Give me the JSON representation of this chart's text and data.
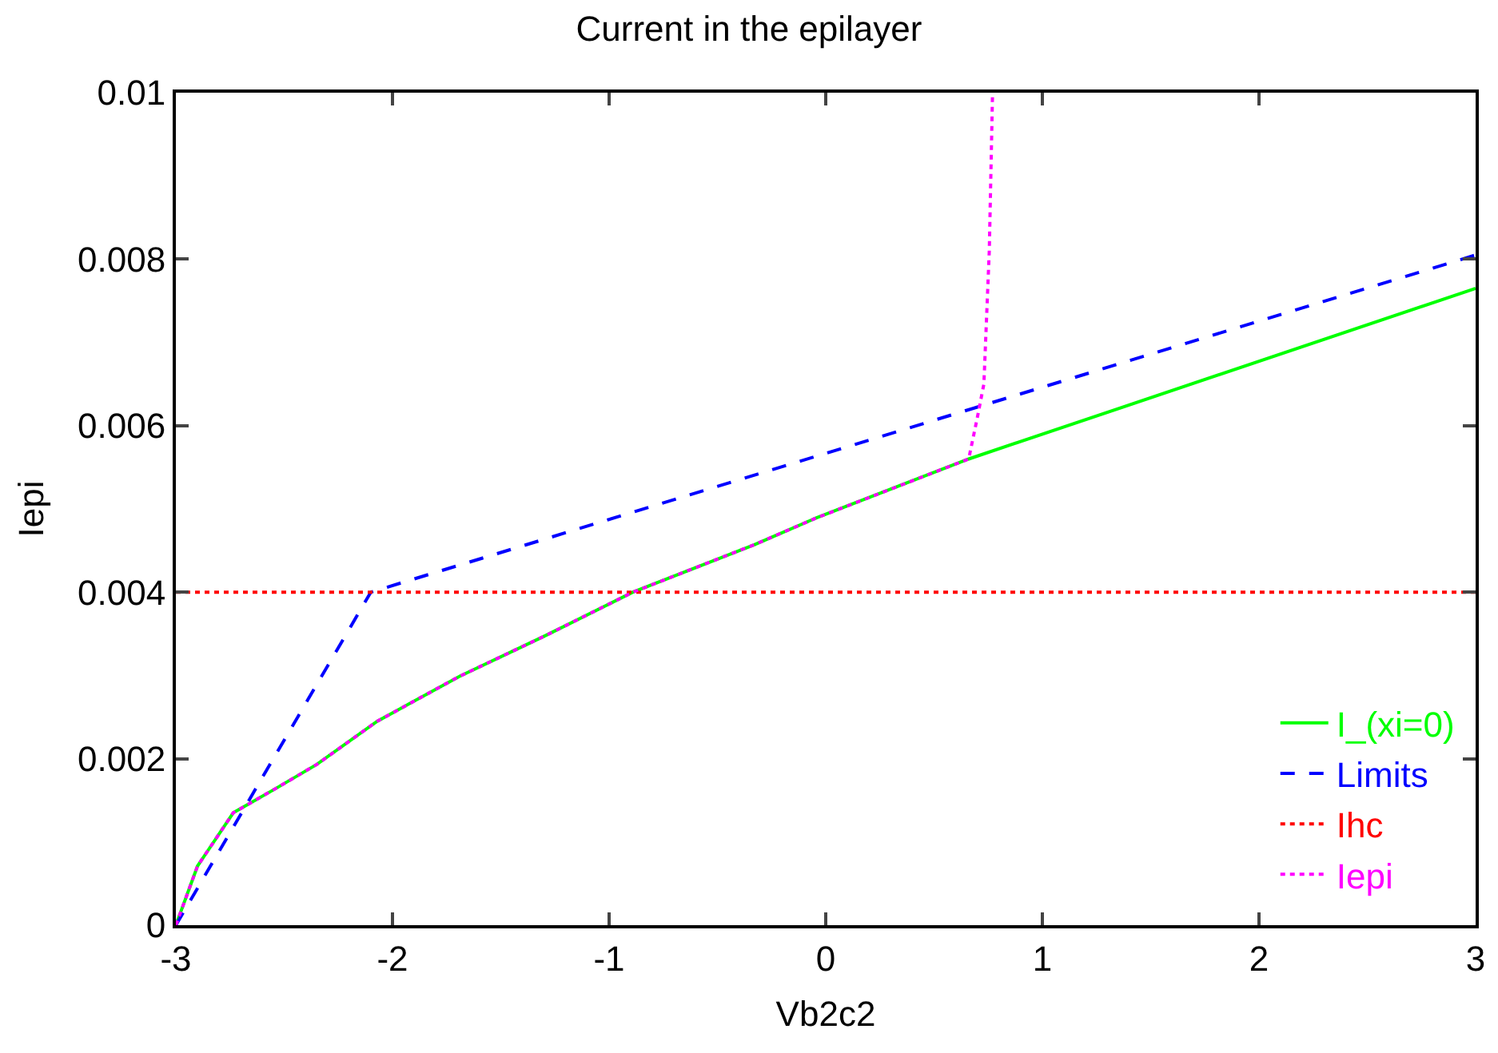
{
  "chart_data": {
    "type": "line",
    "title": "Current in the epilayer",
    "xlabel": "Vb2c2",
    "ylabel": "Iepi",
    "xlim": [
      -3,
      3
    ],
    "ylim": [
      0,
      0.01
    ],
    "xticks": [
      -3,
      -2,
      -1,
      0,
      1,
      2,
      3
    ],
    "yticks": [
      0,
      0.002,
      0.004,
      0.006,
      0.008,
      0.01
    ],
    "legend": "bottom right",
    "marker": "none",
    "series": [
      {
        "name": "I_(xi=0)",
        "color": "#00ff00",
        "line_style": "solid",
        "x": [
          -3,
          -2.9,
          -2.735,
          -2.54,
          -2.35,
          -2.07,
          -1.69,
          -1.3,
          -0.89,
          -0.33,
          -0.045,
          0.66,
          2.99,
          3
        ],
        "values": [
          0,
          0.00071,
          0.00135,
          0.00164,
          0.00193,
          0.00245,
          0.00299,
          0.00347,
          0.004,
          0.00457,
          0.00489,
          0.0056,
          0.00764,
          0.00765
        ]
      },
      {
        "name": "Limits",
        "color": "#0000ff",
        "line_style": "dashed",
        "x": [
          -3,
          -2.1,
          3
        ],
        "values": [
          0,
          0.004,
          0.00805
        ]
      },
      {
        "name": "Ihc",
        "color": "#ff0000",
        "line_style": "dotted",
        "x": [
          -3,
          3
        ],
        "values": [
          0.004,
          0.004
        ]
      },
      {
        "name": "Iepi",
        "color": "#ff00ff",
        "line_style": "dotted",
        "x": [
          -3,
          -2.9,
          -2.735,
          -2.54,
          -2.35,
          -2.07,
          -1.69,
          -1.3,
          -0.89,
          -0.33,
          -0.045,
          0.66,
          0.7,
          0.73,
          0.755,
          0.77
        ],
        "values": [
          0,
          0.00071,
          0.00135,
          0.00164,
          0.00193,
          0.00245,
          0.00299,
          0.00347,
          0.004,
          0.00457,
          0.00489,
          0.0056,
          0.0061,
          0.0065,
          0.0081,
          0.01
        ]
      }
    ]
  }
}
